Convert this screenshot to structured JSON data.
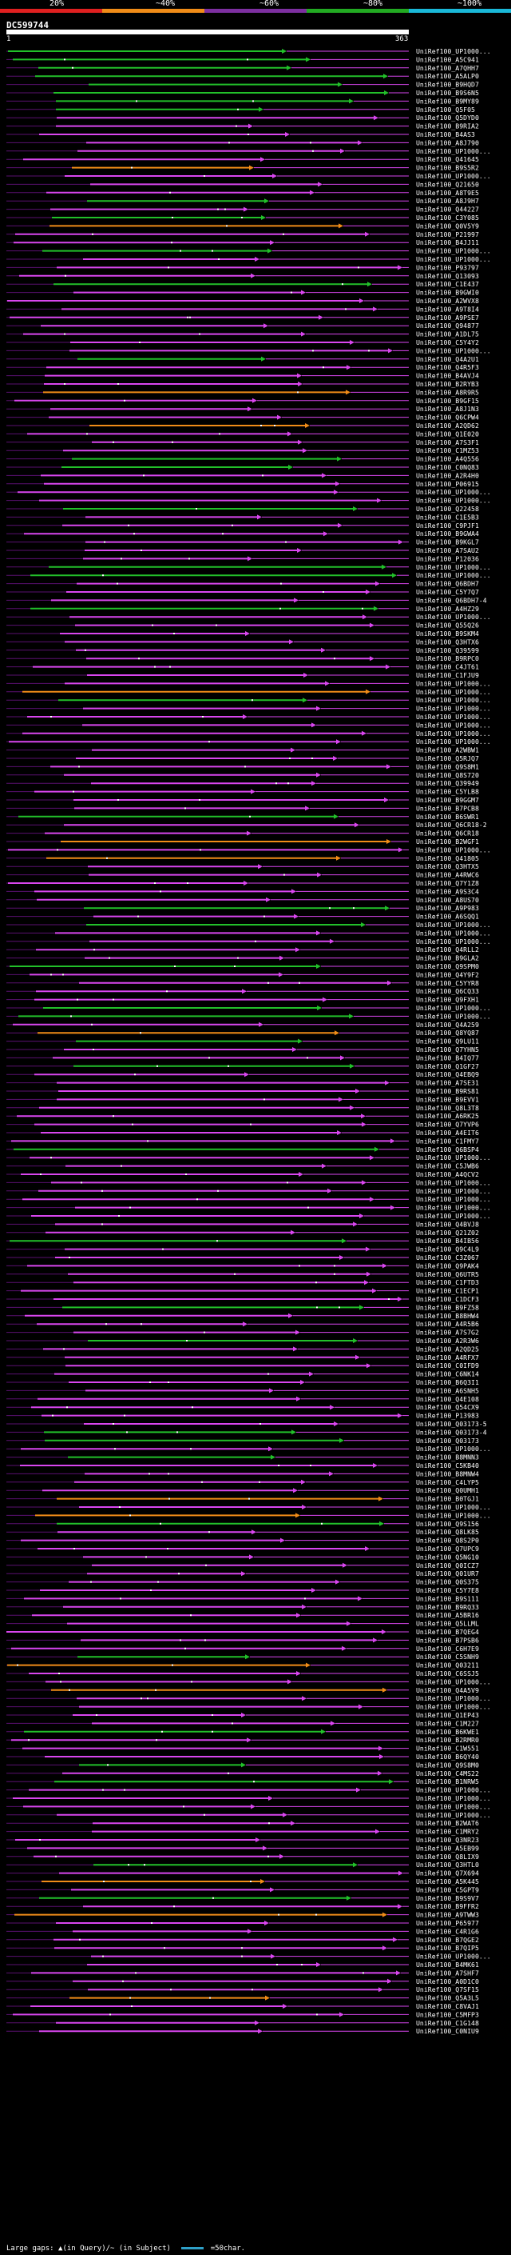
{
  "legend": {
    "labels": [
      "20%",
      "~40%",
      "~60%",
      "~80%",
      "~100%"
    ],
    "colors": [
      "#e02020",
      "#f08c18",
      "#7d2fa0",
      "#22aa22",
      "#1ab8d8"
    ]
  },
  "query": {
    "id": "DC599744",
    "start_label": "1",
    "end_label": "363"
  },
  "hits": [
    "UniRef100_UP1000...",
    "UniRef100_A5C941",
    "UniRef100_A7QHH7",
    "UniRef100_A5ALP0",
    "UniRef100_B9HQD7",
    "UniRef100_B9S6N5",
    "UniRef100_B9MY89",
    "UniRef100_Q5F05",
    "UniRef100_Q5DYD0",
    "UniRef100_B9RIA2",
    "UniRef100_B4AS3",
    "UniRef100_A8J790",
    "UniRef100_UP1000...",
    "UniRef100_Q41645",
    "UniRef100_B9S5R2",
    "UniRef100_UP1000...",
    "UniRef100_Q21650",
    "UniRef100_A8T9E5",
    "UniRef100_A8J9H7",
    "UniRef100_Q44227",
    "UniRef100_C3Y085",
    "UniRef100_Q0V5Y9",
    "UniRef100_P21997",
    "UniRef100_B4JJ11",
    "UniRef100_UP1000...",
    "UniRef100_UP1000...",
    "UniRef100_P93797",
    "UniRef100_Q13093",
    "UniRef100_C1E437",
    "UniRef100_B9GWI0",
    "UniRef100_A2WVX8",
    "UniRef100_A9T8I4",
    "UniRef100_A9PSE7",
    "UniRef100_Q94877",
    "UniRef100_A1DL75",
    "UniRef100_C5Y4Y2",
    "UniRef100_UP1000...",
    "UniRef100_Q4A2U1",
    "UniRef100_Q4R5F3",
    "UniRef100_B4AVJ4",
    "UniRef100_B2RYB3",
    "UniRef100_A8R9R5",
    "UniRef100_B9GF15",
    "UniRef100_A8J1N3",
    "UniRef100_Q6CPW4",
    "UniRef100_A2QD62",
    "UniRef100_Q1E020",
    "UniRef100_A7S3F1",
    "UniRef100_C1MZ53",
    "UniRef100_A4Q556",
    "UniRef100_C0NQ83",
    "UniRef100_A2R4H0",
    "UniRef100_P06915",
    "UniRef100_UP1000...",
    "UniRef100_UP1000...",
    "UniRef100_Q22458",
    "UniRef100_C1E5B3",
    "UniRef100_C9PJF1",
    "UniRef100_B9GWA4",
    "UniRef100_B9KGL7",
    "UniRef100_A7SAU2",
    "UniRef100_P12036",
    "UniRef100_UP1000...",
    "UniRef100_UP1000...",
    "UniRef100_Q6BDH7",
    "UniRef100_C5Y7Q7",
    "UniRef100_Q6BDH7-4",
    "UniRef100_A4HZ29",
    "UniRef100_UP1000...",
    "UniRef100_Q55Q26",
    "UniRef100_B9SKM4",
    "UniRef100_Q3HTX6",
    "UniRef100_Q39599",
    "UniRef100_B9RPC0",
    "UniRef100_C4JT61",
    "UniRef100_C1FJU9",
    "UniRef100_UP1000...",
    "UniRef100_UP1000...",
    "UniRef100_UP1000...",
    "UniRef100_UP1000...",
    "UniRef100_UP1000...",
    "UniRef100_UP1000...",
    "UniRef100_UP1000...",
    "UniRef100_UP1000...",
    "UniRef100_A2WBW1",
    "UniRef100_Q5RJQ7",
    "UniRef100_Q9S8M1",
    "UniRef100_Q8S720",
    "UniRef100_Q39949",
    "UniRef100_C5YLB8",
    "UniRef100_B9GGM7",
    "UniRef100_B7PCB8",
    "UniRef100_B6SWR1",
    "UniRef100_Q6CR18-2",
    "UniRef100_Q6CR18",
    "UniRef100_B2WGF1",
    "UniRef100_UP1000...",
    "UniRef100_Q41805",
    "UniRef100_Q3HTX5",
    "UniRef100_A4RWC6",
    "UniRef100_Q7Y1Z8",
    "UniRef100_A9S3C4",
    "UniRef100_A8US70",
    "UniRef100_A9P983",
    "UniRef100_A6SQQ1",
    "UniRef100_UP1000...",
    "UniRef100_UP1000...",
    "UniRef100_UP1000...",
    "UniRef100_Q4RLL2",
    "UniRef100_B9GLA2",
    "UniRef100_Q9SPM0",
    "UniRef100_Q4Y9F2",
    "UniRef100_C5YYR8",
    "UniRef100_Q6CQ33",
    "UniRef100_Q9FXH1",
    "UniRef100_UP1000...",
    "UniRef100_UP1000...",
    "UniRef100_Q4A259",
    "UniRef100_Q8YQ87",
    "UniRef100_Q9LU11",
    "UniRef100_Q7YHN5",
    "UniRef100_B4IQ77",
    "UniRef100_Q1GF27",
    "UniRef100_Q4EBQ9",
    "UniRef100_A7SE31",
    "UniRef100_B9RS81",
    "UniRef100_B9EVV1",
    "UniRef100_Q8L3T8",
    "UniRef100_A6RK25",
    "UniRef100_Q7YVP6",
    "UniRef100_A4EIT6",
    "UniRef100_C1FMY7",
    "UniRef100_Q6BSP4",
    "UniRef100_UP1000...",
    "UniRef100_C5JWB6",
    "UniRef100_A4QCV2",
    "UniRef100_UP1000...",
    "UniRef100_UP1000...",
    "UniRef100_UP1000...",
    "UniRef100_UP1000...",
    "UniRef100_UP1000...",
    "UniRef100_Q4BVJ8",
    "UniRef100_Q21Z02",
    "UniRef100_B4IB56",
    "UniRef100_Q9C4L9",
    "UniRef100_C3Z067",
    "UniRef100_Q9PAK4",
    "UniRef100_Q6UTR5",
    "UniRef100_C1FTD3",
    "UniRef100_C1ECP1",
    "UniRef100_C1DCF3",
    "UniRef100_B9FZ58",
    "UniRef100_B8BHW4",
    "UniRef100_A4R5B6",
    "UniRef100_A7S7G2",
    "UniRef100_A2R3W6",
    "UniRef100_A2QD25",
    "UniRef100_A4RFX7",
    "UniRef100_C0IFD9",
    "UniRef100_C6NK14",
    "UniRef100_B6Q3I1",
    "UniRef100_A6SNH5",
    "UniRef100_Q4E108",
    "UniRef100_Q54CX9",
    "UniRef100_P13983",
    "UniRef100_Q03173-5",
    "UniRef100_Q03173-4",
    "UniRef100_Q03173",
    "UniRef100_UP1000...",
    "UniRef100_B8MNN3",
    "UniRef100_C5KB40",
    "UniRef100_B8MNW4",
    "UniRef100_C4LYP5",
    "UniRef100_Q0UMH1",
    "UniRef100_B0TGJ1",
    "UniRef100_UP1000...",
    "UniRef100_UP1000...",
    "UniRef100_Q9S156",
    "UniRef100_Q8LK85",
    "UniRef100_Q8S2P0",
    "UniRef100_Q7UPC9",
    "UniRef100_Q5NG10",
    "UniRef100_Q0ICZ7",
    "UniRef100_Q01UR7",
    "UniRef100_Q0S375",
    "UniRef100_C5Y7E8",
    "UniRef100_B9S111",
    "UniRef100_B9RQ33",
    "UniRef100_A5BR16",
    "UniRef100_Q5LLML",
    "UniRef100_B7QEG4",
    "UniRef100_B7PSB6",
    "UniRef100_C6H7E9",
    "UniRef100_C5SNH9",
    "UniRef100_Q03211",
    "UniRef100_C6SSJ5",
    "UniRef100_UP1000...",
    "UniRef100_Q4A5V9",
    "UniRef100_UP1000...",
    "UniRef100_UP1000...",
    "UniRef100_Q1EP43",
    "UniRef100_C1M227",
    "UniRef100_B6KWE1",
    "UniRef100_B2RMR0",
    "UniRef100_C1W551",
    "UniRef100_B6QY40",
    "UniRef100_Q9S8M0",
    "UniRef100_C4MS22",
    "UniRef100_B1NRW5",
    "UniRef100_UP1000...",
    "UniRef100_UP1000...",
    "UniRef100_UP1000...",
    "UniRef100_UP1000...",
    "UniRef100_B2WAT6",
    "UniRef100_C1MRY2",
    "UniRef100_Q3NR23",
    "UniRef100_A5EB99",
    "UniRef100_Q8LIX9",
    "UniRef100_Q3HTL0",
    "UniRef100_Q7X694",
    "UniRef100_A5K445",
    "UniRef100_C5GPT9",
    "UniRef100_B9S9V7",
    "UniRef100_B9FFR2",
    "UniRef100_A9TWW3",
    "UniRef100_P65977",
    "UniRef100_C4R1G6",
    "UniRef100_B7QGE2",
    "UniRef100_B7QIP5",
    "UniRef100_UP1000...",
    "UniRef100_B4MK61",
    "UniRef100_A7SHF7",
    "UniRef100_A0D1C0",
    "UniRef100_Q7SF15",
    "UniRef100_Q5A3L5",
    "UniRef100_C8VAJ1",
    "UniRef100_C5MFP3",
    "UniRef100_C1G148",
    "UniRef100_C0NIU9"
  ],
  "footer": {
    "gap_text": "Large gaps: ▲(in Query)/~ (in Subject)",
    "scale_text": "=50char."
  }
}
